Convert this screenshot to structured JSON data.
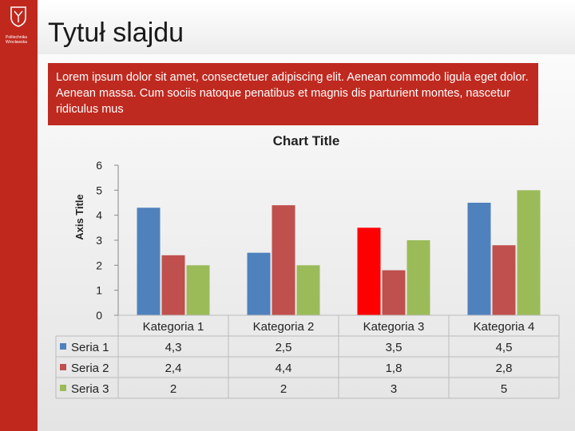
{
  "slide": {
    "title": "Tytuł slajdu",
    "body_text": "Lorem ipsum dolor sit amet, consectetuer adipiscing elit. Aenean commodo ligula eget dolor. Aenean massa. Cum sociis natoque penatibus et magnis dis parturient montes, nascetur ridiculus mus",
    "logo_text": "Politechnika Wrocławska",
    "accent_color": "#c0281e"
  },
  "chart_data": {
    "type": "bar",
    "title": "Chart Title",
    "ylabel": "Axis Title",
    "xlabel": "",
    "ylim": [
      0,
      6
    ],
    "yticks": [
      "0",
      "1",
      "2",
      "3",
      "4",
      "5",
      "6"
    ],
    "grid": false,
    "legend": "data-table",
    "categories": [
      "Kategoria 1",
      "Kategoria 2",
      "Kategoria 3",
      "Kategoria 4"
    ],
    "series": [
      {
        "name": "Seria 1",
        "values": [
          4.3,
          2.5,
          3.5,
          4.5
        ],
        "labels": [
          "4,3",
          "2,5",
          "3,5",
          "4,5"
        ],
        "color": "#4f81bd",
        "highlight": {
          "index": 2,
          "color": "#ff0000"
        }
      },
      {
        "name": "Seria 2",
        "values": [
          2.4,
          4.4,
          1.8,
          2.8
        ],
        "labels": [
          "2,4",
          "4,4",
          "1,8",
          "2,8"
        ],
        "color": "#c0504d"
      },
      {
        "name": "Seria 3",
        "values": [
          2,
          2,
          3,
          5
        ],
        "labels": [
          "2",
          "2",
          "3",
          "5"
        ],
        "color": "#9bbb59"
      }
    ]
  }
}
